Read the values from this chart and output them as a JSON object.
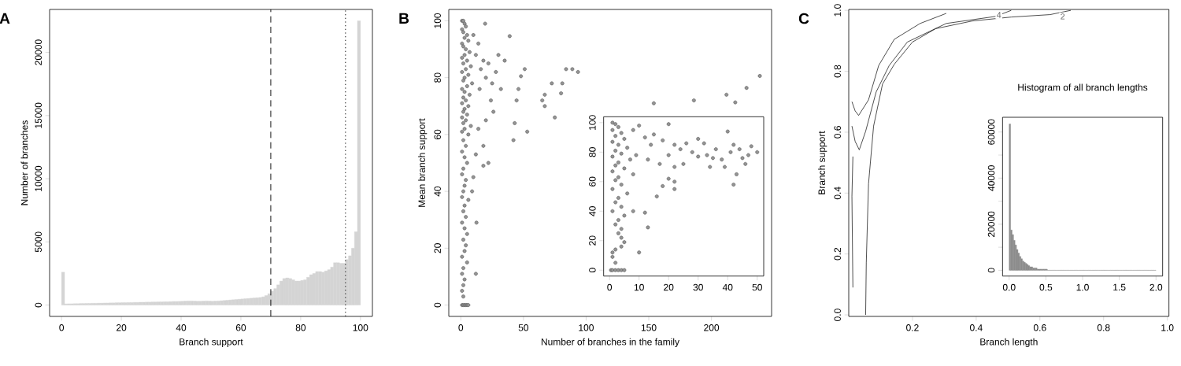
{
  "chart_data": [
    {
      "type": "histogram",
      "title": "A",
      "xlabel": "Branch support",
      "ylabel": "Number of branches",
      "color": "#d4d4d4",
      "bins": [
        0,
        1,
        2,
        3,
        4,
        5,
        6,
        7,
        8,
        9,
        10,
        11,
        12,
        13,
        14,
        15,
        16,
        17,
        18,
        19,
        20,
        21,
        22,
        23,
        24,
        25,
        26,
        27,
        28,
        29,
        30,
        31,
        32,
        33,
        34,
        35,
        36,
        37,
        38,
        39,
        40,
        41,
        42,
        43,
        44,
        45,
        46,
        47,
        48,
        49,
        50,
        51,
        52,
        53,
        54,
        55,
        56,
        57,
        58,
        59,
        60,
        61,
        62,
        63,
        64,
        65,
        66,
        67,
        68,
        69,
        70,
        71,
        72,
        73,
        74,
        75,
        76,
        77,
        78,
        79,
        80,
        81,
        82,
        83,
        84,
        85,
        86,
        87,
        88,
        89,
        90,
        91,
        92,
        93,
        94,
        95,
        96,
        97,
        98,
        99,
        100
      ],
      "values": [
        2600,
        90,
        100,
        100,
        110,
        110,
        120,
        120,
        130,
        130,
        140,
        140,
        150,
        150,
        160,
        160,
        170,
        170,
        180,
        180,
        190,
        190,
        200,
        200,
        210,
        210,
        220,
        220,
        230,
        230,
        240,
        240,
        250,
        250,
        260,
        260,
        270,
        280,
        280,
        290,
        300,
        310,
        320,
        320,
        310,
        300,
        300,
        310,
        320,
        310,
        300,
        310,
        320,
        340,
        360,
        380,
        400,
        420,
        440,
        460,
        480,
        500,
        520,
        540,
        560,
        580,
        600,
        650,
        750,
        900,
        1100,
        1300,
        1600,
        1900,
        2100,
        2150,
        2100,
        2000,
        1900,
        1900,
        1950,
        2000,
        2200,
        2400,
        2500,
        2650,
        2650,
        2600,
        2700,
        2800,
        3000,
        3350,
        3350,
        3300,
        3300,
        3600,
        3900,
        4500,
        5800,
        22500
      ],
      "xlim": [
        -4,
        104
      ],
      "ylim": [
        -900,
        23400
      ],
      "xticks": [
        0,
        20,
        40,
        60,
        80,
        100
      ],
      "yticks": [
        0,
        5000,
        10000,
        15000,
        20000
      ],
      "ref_lines": [
        {
          "axis": "x",
          "value": 70,
          "line_style": "dashed"
        },
        {
          "axis": "x",
          "value": 95,
          "line_style": "dotted"
        }
      ]
    },
    {
      "type": "scatter",
      "title": "B",
      "xlabel": "Number of branches in the family",
      "ylabel": "Mean branch support",
      "color": "#4d4d4d",
      "x": [
        1,
        2,
        3,
        4,
        1,
        2,
        5,
        3,
        6,
        1,
        2,
        4,
        7,
        3,
        1,
        5,
        2,
        8,
        4,
        1,
        6,
        3,
        2,
        9,
        5,
        1,
        3,
        7,
        2,
        4,
        1,
        6,
        3,
        2,
        5,
        1,
        4,
        2,
        8,
        3,
        1,
        6,
        2,
        4,
        1,
        3,
        5,
        2,
        1,
        4,
        3,
        2,
        1,
        6,
        3,
        2,
        4,
        1,
        3,
        5,
        2,
        4,
        3,
        1,
        5,
        2,
        1,
        3,
        2,
        1,
        2,
        1,
        2,
        3,
        4,
        5,
        6,
        10,
        14,
        12,
        18,
        16,
        22,
        20,
        25,
        15,
        24,
        30,
        35,
        28,
        32,
        26,
        20,
        14,
        18,
        12,
        22,
        10,
        9,
        12.5,
        12,
        19.4,
        18,
        39,
        43,
        42,
        44.5,
        46,
        48,
        51,
        53,
        65,
        67,
        67,
        72.6,
        75,
        80,
        81,
        84,
        89,
        93.5,
        154,
        186,
        212,
        219,
        228,
        238.6
      ],
      "values": [
        100,
        100,
        99,
        98,
        97,
        96,
        95,
        94,
        93,
        92,
        91,
        90,
        89,
        88,
        87,
        86,
        85,
        84,
        83,
        82,
        81,
        80,
        79,
        78,
        77,
        76,
        75,
        74,
        73,
        72,
        71,
        70,
        69,
        68,
        67,
        66,
        65,
        64,
        63,
        62,
        61,
        60,
        58,
        56,
        54,
        52,
        50,
        48,
        46,
        44,
        42,
        40,
        38,
        37,
        35,
        33,
        31,
        29,
        27,
        25,
        23,
        21,
        19,
        17,
        15,
        13,
        11,
        9,
        7,
        5,
        3,
        0,
        0,
        0,
        0,
        0,
        0,
        95,
        92,
        88,
        86,
        83,
        85,
        80,
        78,
        76,
        72,
        88,
        86,
        82,
        76,
        68,
        65,
        62,
        56,
        53,
        50,
        45,
        40,
        29,
        11,
        99,
        49,
        94.6,
        64,
        58,
        72,
        76,
        80.5,
        83,
        61,
        72,
        70,
        74,
        78,
        66,
        74.5,
        78,
        83,
        83,
        82,
        71,
        72,
        74,
        71.3,
        76.4,
        80.6
      ],
      "xlim": [
        -9.6,
        248
      ],
      "ylim": [
        -4,
        104
      ],
      "xticks": [
        0,
        50,
        100,
        150,
        200
      ],
      "yticks": [
        0,
        20,
        40,
        60,
        80,
        100
      ]
    },
    {
      "type": "scatter",
      "color": "#4d4d4d",
      "x": [
        1,
        2,
        3,
        1,
        4,
        2,
        5,
        1,
        3,
        6,
        2,
        4,
        1,
        7,
        3,
        2,
        5,
        1,
        8,
        3,
        2,
        4,
        1,
        6,
        3,
        2,
        4,
        1,
        5,
        3,
        2,
        4,
        3,
        4,
        5,
        4,
        2,
        1,
        1,
        2,
        0.5,
        1,
        2,
        3,
        4,
        5,
        8,
        10,
        12,
        15,
        14,
        18,
        20,
        22,
        9,
        13,
        17,
        20,
        22,
        22,
        22,
        24,
        26,
        28,
        30,
        32,
        33,
        35,
        36,
        38,
        40,
        41,
        42,
        43,
        44,
        45,
        46,
        47,
        48,
        50,
        10,
        13,
        16,
        18,
        8,
        12,
        20,
        25,
        30,
        34,
        39,
        42
      ],
      "values": [
        100,
        99,
        97,
        95,
        93,
        91,
        89,
        87,
        85,
        83,
        81,
        79,
        77,
        75,
        73,
        71,
        69,
        67,
        65,
        63,
        61,
        58,
        55,
        52,
        49,
        46,
        43,
        40,
        37,
        34,
        31,
        28,
        25,
        22,
        19,
        16,
        14,
        12,
        9,
        5,
        0,
        0,
        0,
        0,
        0,
        0,
        95,
        98,
        90,
        92,
        85,
        88,
        99,
        85,
        78,
        75,
        72,
        78,
        70,
        60,
        55,
        82,
        86,
        80,
        89,
        86,
        78,
        76,
        82,
        75,
        94,
        80,
        58,
        65,
        82,
        76,
        72,
        78,
        84,
        80,
        12,
        29,
        50,
        57,
        40,
        39,
        62,
        72,
        77,
        70,
        70,
        85
      ],
      "xlim": [
        -2,
        52.2
      ],
      "ylim": [
        -4,
        104
      ],
      "xticks": [
        0,
        10,
        20,
        30,
        40,
        50
      ],
      "yticks": [
        0,
        20,
        40,
        60,
        80,
        100
      ]
    },
    {
      "type": "line",
      "title": "C",
      "xlabel": "Branch length",
      "ylabel": "Branch support",
      "series": [
        {
          "color": "#222222",
          "x": [
            0.053,
            0.055,
            0.062,
            0.078,
            0.106,
            0.143,
            0.2,
            0.273,
            0.387,
            0.51,
            0.632,
            0.697
          ],
          "values": [
            0,
            0.171,
            0.43,
            0.62,
            0.758,
            0.823,
            0.896,
            0.94,
            0.965,
            0.978,
            0.986,
            1.0
          ]
        },
        {
          "color": "#222222",
          "x": [
            0.013,
            0.01,
            0.013
          ],
          "values": [
            0.09,
            0.39,
            0.52
          ]
        },
        {
          "color": "#222222",
          "x": [
            0.01,
            0.02,
            0.033,
            0.053,
            0.086,
            0.127,
            0.184,
            0.306,
            0.46,
            0.51
          ],
          "values": [
            0.62,
            0.57,
            0.542,
            0.603,
            0.732,
            0.819,
            0.896,
            0.957,
            0.98,
            1.0
          ]
        },
        {
          "color": "#222222",
          "x": [
            0.01,
            0.02,
            0.031,
            0.062,
            0.094,
            0.143,
            0.224,
            0.306
          ],
          "values": [
            0.7,
            0.67,
            0.655,
            0.706,
            0.819,
            0.905,
            0.957,
            0.99
          ]
        }
      ],
      "annotations": [
        {
          "text": "2",
          "x": 0.66,
          "y": 0.98
        },
        {
          "text": "4",
          "x": 0.46,
          "y": 0.985
        }
      ],
      "xlim": [
        0,
        1.005
      ],
      "ylim": [
        -0.005,
        1.003
      ],
      "xticks": [
        0.2,
        0.4,
        0.6,
        0.8,
        {
          "value": 1,
          "label": "1.0"
        }
      ],
      "yticks": [
        {
          "value": 0,
          "label": "0.0"
        },
        0.2,
        0.4,
        0.6,
        0.8,
        {
          "value": 1,
          "label": "1.0"
        }
      ]
    },
    {
      "type": "histogram",
      "title": "Histogram of all branch lengths",
      "color": "#8c8c8c",
      "bins": [
        0,
        0.02,
        0.04,
        0.06,
        0.08,
        0.1,
        0.12,
        0.14,
        0.16,
        0.18,
        0.2,
        0.22,
        0.24,
        0.26,
        0.28,
        0.3,
        0.32,
        0.34,
        0.36,
        0.38,
        0.4,
        0.42,
        0.44,
        0.46,
        0.48,
        0.5,
        0.52,
        0.54,
        0.56,
        0.58,
        0.6,
        0.62,
        0.64,
        0.66,
        0.68,
        0.7,
        0.72,
        0.74,
        0.76,
        0.78,
        0.8,
        0.82,
        0.84,
        0.86,
        0.88,
        0.9,
        0.92,
        0.94,
        0.96,
        0.98,
        1.0,
        1.02,
        1.04,
        1.06,
        1.08,
        1.1,
        1.12,
        1.14,
        1.16,
        1.18,
        1.2,
        1.22,
        1.24,
        1.26,
        1.28,
        1.3,
        1.32,
        1.34,
        1.36,
        1.38,
        1.4,
        1.42,
        1.44,
        1.46,
        1.48,
        1.5,
        1.52,
        1.54,
        1.56,
        1.58,
        1.6,
        1.62,
        1.64,
        1.66,
        1.68,
        1.7,
        1.72,
        1.74,
        1.76,
        1.78,
        1.8,
        1.82,
        1.84,
        1.86,
        1.88,
        1.9,
        1.92,
        1.94,
        1.96,
        1.98,
        2.0
      ],
      "values": [
        63500,
        17500,
        15500,
        13000,
        11000,
        9000,
        7500,
        6000,
        5000,
        4000,
        3500,
        3000,
        2500,
        2000,
        1500,
        1500,
        1000,
        1000,
        1000,
        500,
        500,
        500,
        500,
        500,
        500,
        500,
        0,
        0,
        0,
        0,
        0,
        0,
        0,
        0,
        0,
        0,
        0,
        0,
        0,
        0,
        0,
        0,
        0,
        0,
        0,
        0,
        0,
        0,
        0,
        0,
        0,
        0,
        0,
        0,
        0,
        0,
        0,
        0,
        0,
        0,
        0,
        0,
        0,
        0,
        0,
        0,
        0,
        0,
        0,
        0,
        0,
        0,
        0,
        0,
        0,
        0,
        0,
        0,
        0,
        0,
        0,
        0,
        0,
        0,
        0,
        0,
        0,
        0,
        0,
        0,
        0,
        0,
        0,
        0,
        0,
        0,
        0,
        0,
        0,
        0
      ],
      "xlim": [
        -0.09,
        2.09
      ],
      "ylim": [
        -2500,
        66400
      ],
      "xticks": [
        {
          "value": 0,
          "label": "0.0"
        },
        0.5,
        {
          "value": 1,
          "label": "1.0"
        },
        1.5,
        {
          "value": 2,
          "label": "2.0"
        }
      ],
      "yticks": [
        0,
        {
          "value": 10000,
          "label": null
        },
        20000,
        {
          "value": 30000,
          "label": null
        },
        40000,
        {
          "value": 50000,
          "label": null
        },
        60000
      ]
    }
  ]
}
